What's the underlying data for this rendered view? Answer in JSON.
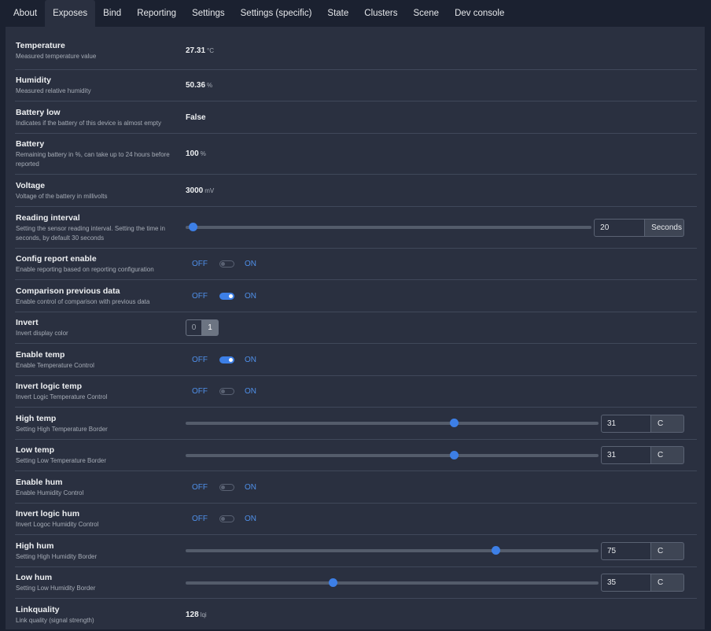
{
  "tabs": [
    "About",
    "Exposes",
    "Bind",
    "Reporting",
    "Settings",
    "Settings (specific)",
    "State",
    "Clusters",
    "Scene",
    "Dev console"
  ],
  "rows": {
    "temperature": {
      "name": "Temperature",
      "desc": "Measured temperature value",
      "value": "27.31",
      "unit": "°C"
    },
    "humidity": {
      "name": "Humidity",
      "desc": "Measured relative humidity",
      "value": "50.36",
      "unit": "%"
    },
    "battery_low": {
      "name": "Battery low",
      "desc": "Indicates if the battery of this device is almost empty",
      "value": "False"
    },
    "battery": {
      "name": "Battery",
      "desc1": "Remaining battery in %, can take up to 24 hours before",
      "desc2": "reported",
      "value": "100",
      "unit": "%"
    },
    "voltage": {
      "name": "Voltage",
      "desc": "Voltage of the battery in millivolts",
      "value": "3000",
      "unit": "mV"
    },
    "reading_interval": {
      "name": "Reading interval",
      "desc1": "Setting the sensor reading interval. Setting the time in",
      "desc2": "seconds, by default 30 seconds",
      "value": "20",
      "unit": "Seconds",
      "level": 0.018
    },
    "config_report": {
      "name": "Config report enable",
      "desc": "Enable reporting based on reporting configuration",
      "off": "OFF",
      "on": "ON",
      "state": false
    },
    "comparison": {
      "name": "Comparison previous data",
      "desc": "Enable control of comparison with previous data",
      "off": "OFF",
      "on": "ON",
      "state": true
    },
    "invert": {
      "name": "Invert",
      "desc": "Invert display color",
      "opt0": "0",
      "opt1": "1"
    },
    "enable_temp": {
      "name": "Enable temp",
      "desc": "Enable Temperature Control",
      "off": "OFF",
      "on": "ON",
      "state": true
    },
    "invert_logic_temp": {
      "name": "Invert logic temp",
      "desc": "Invert Logic Temperature Control",
      "off": "OFF",
      "on": "ON",
      "state": false
    },
    "high_temp": {
      "name": "High temp",
      "desc": "Setting High Temperature Border",
      "value": "31",
      "unit": "C",
      "level": 0.65
    },
    "low_temp": {
      "name": "Low temp",
      "desc": "Setting Low Temperature Border",
      "value": "31",
      "unit": "C",
      "level": 0.65
    },
    "enable_hum": {
      "name": "Enable hum",
      "desc": "Enable Humidity Control",
      "off": "OFF",
      "on": "ON",
      "state": false
    },
    "invert_logic_hum": {
      "name": "Invert logic hum",
      "desc": "Invert Logoc Humidity Control",
      "off": "OFF",
      "on": "ON",
      "state": false
    },
    "high_hum": {
      "name": "High hum",
      "desc": "Setting High Humidity Border",
      "value": "75",
      "unit": "C",
      "level": 0.75
    },
    "low_hum": {
      "name": "Low hum",
      "desc": "Setting Low Humidity Border",
      "value": "35",
      "unit": "C",
      "level": 0.357
    },
    "linkquality": {
      "name": "Linkquality",
      "desc": "Link quality (signal strength)",
      "value": "128",
      "unit": "lqi"
    }
  }
}
